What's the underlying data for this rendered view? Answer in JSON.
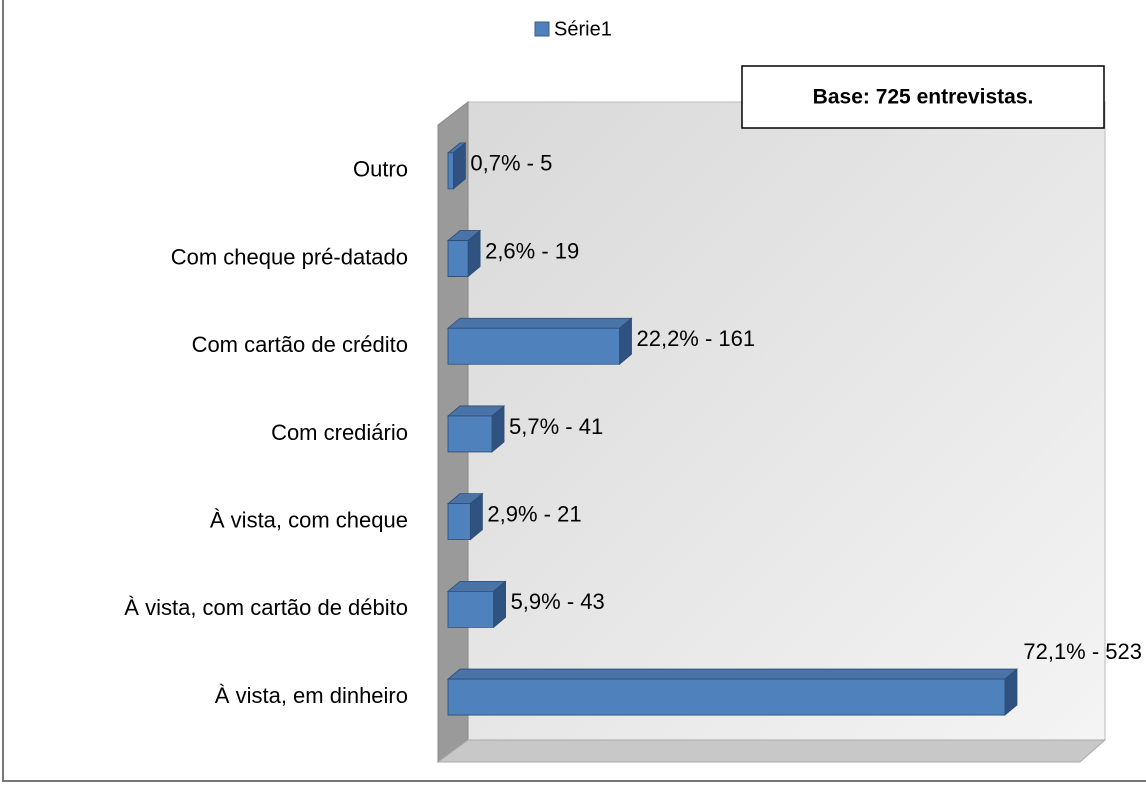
{
  "chart_data": {
    "type": "bar",
    "orientation": "horizontal",
    "categories": [
      "Outro",
      "Com cheque pré-datado",
      "Com cartão de crédito",
      "Com crediário",
      "À vista, com cheque",
      "À vista, com cartão de débito",
      "À vista, em dinheiro"
    ],
    "series": [
      {
        "name": "Série1",
        "color": "#4f81bd",
        "values": [
          0.7,
          2.6,
          22.2,
          5.7,
          2.9,
          5.9,
          72.1
        ],
        "value_labels": [
          "0,7% - 5",
          "2,6% - 19",
          "22,2% - 161",
          "5,7% - 41",
          "2,9% - 21",
          "5,9% - 43",
          "72,1% - 523"
        ]
      }
    ],
    "xlim": [
      0,
      80
    ],
    "legend": "top",
    "annotation": "Base: 725 entrevistas."
  }
}
